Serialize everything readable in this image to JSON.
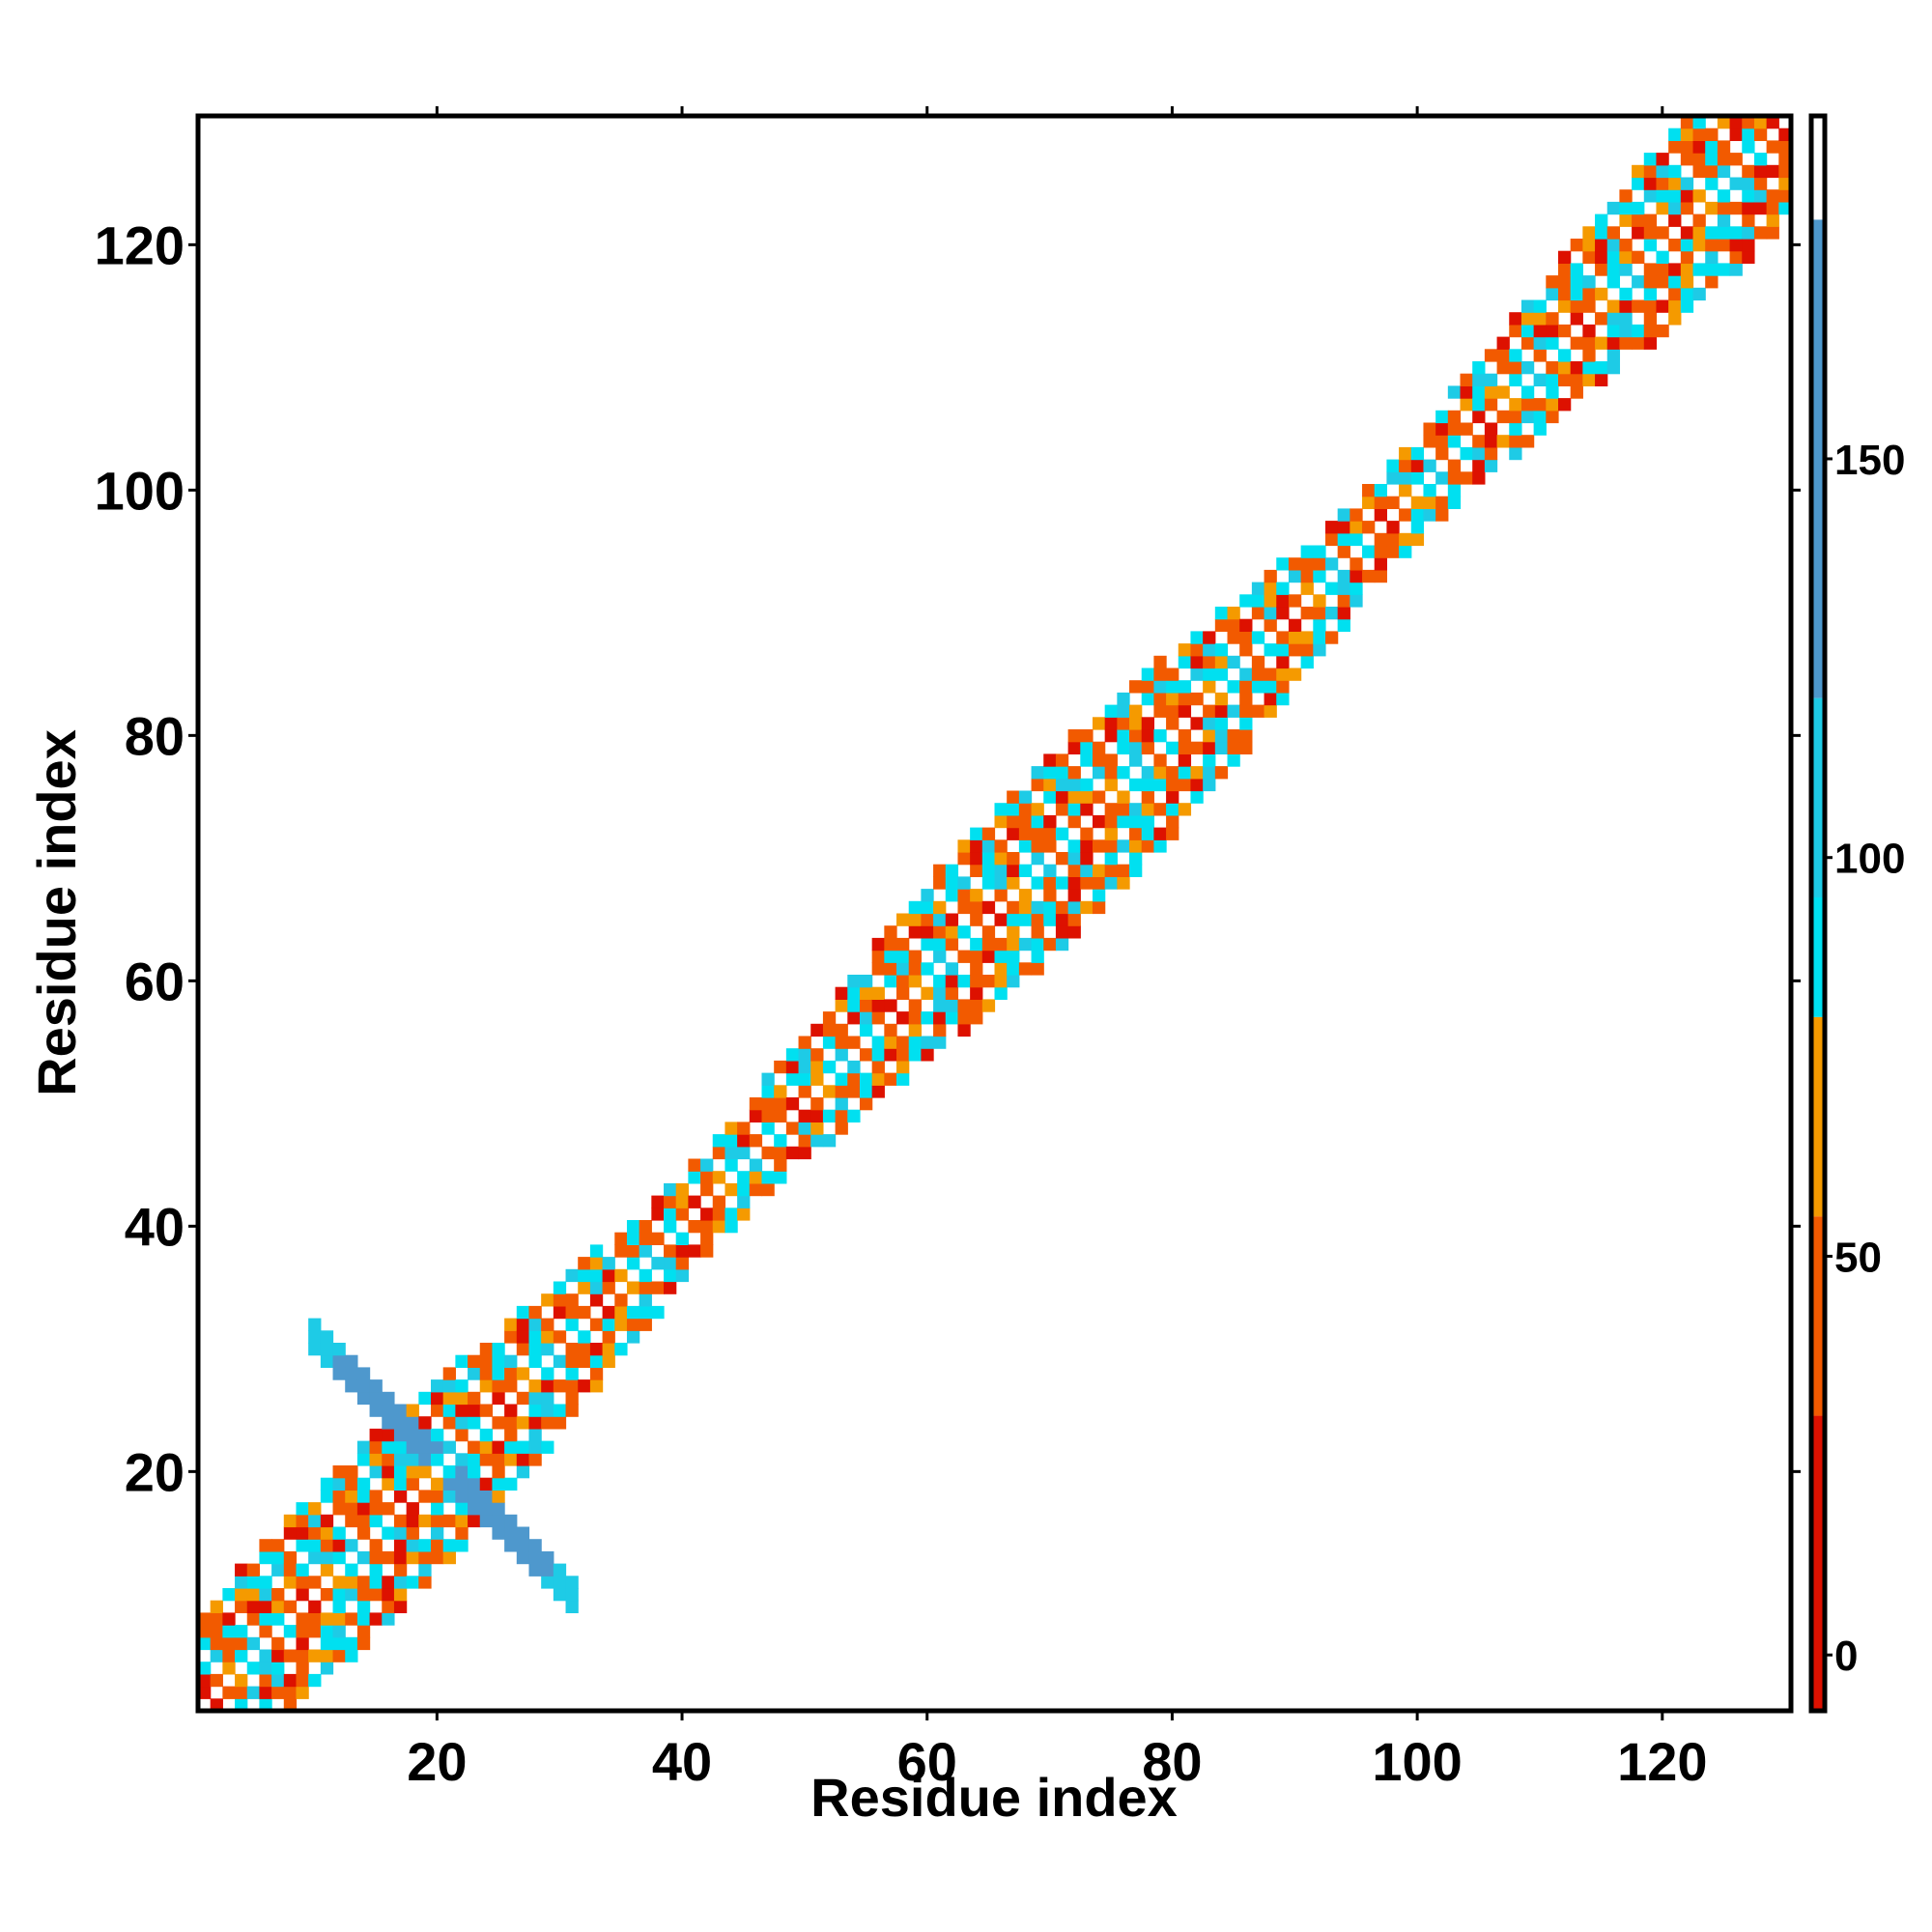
{
  "chart_data": {
    "type": "heatmap",
    "title": "",
    "xlabel": "Residue index",
    "ylabel": "Residue index",
    "xlim": [
      0.5,
      130.5
    ],
    "ylim": [
      0.5,
      130.5
    ],
    "x_ticks": [
      20,
      40,
      60,
      80,
      100,
      120
    ],
    "y_ticks": [
      20,
      40,
      60,
      80,
      100,
      120
    ],
    "colorbar": {
      "ticks": [
        0,
        50,
        100,
        150
      ],
      "range": [
        -7,
        193
      ],
      "bands": [
        {
          "from": -7,
          "to": 30,
          "color": "#dd1100"
        },
        {
          "from": 30,
          "to": 55,
          "color": "#f25a00"
        },
        {
          "from": 55,
          "to": 80,
          "color": "#f59a00"
        },
        {
          "from": 80,
          "to": 95,
          "color": "#00e0f0"
        },
        {
          "from": 95,
          "to": 120,
          "color": "#1ecbe6"
        },
        {
          "from": 120,
          "to": 180,
          "color": "#4e98cd"
        },
        {
          "from": 180,
          "to": 193,
          "color": "#ffffff"
        }
      ]
    },
    "pattern": {
      "description_cells": "symmetric contact map; band around diagonal of half-width 8 residues plus anti-diagonal cross centred at residue 20",
      "diagonal_band_halfwidth": 8,
      "cross_center": 20.5,
      "cross_halfwidth": 10,
      "cross_thickness": 1
    },
    "grid": false,
    "legend": "colorbar-right"
  }
}
